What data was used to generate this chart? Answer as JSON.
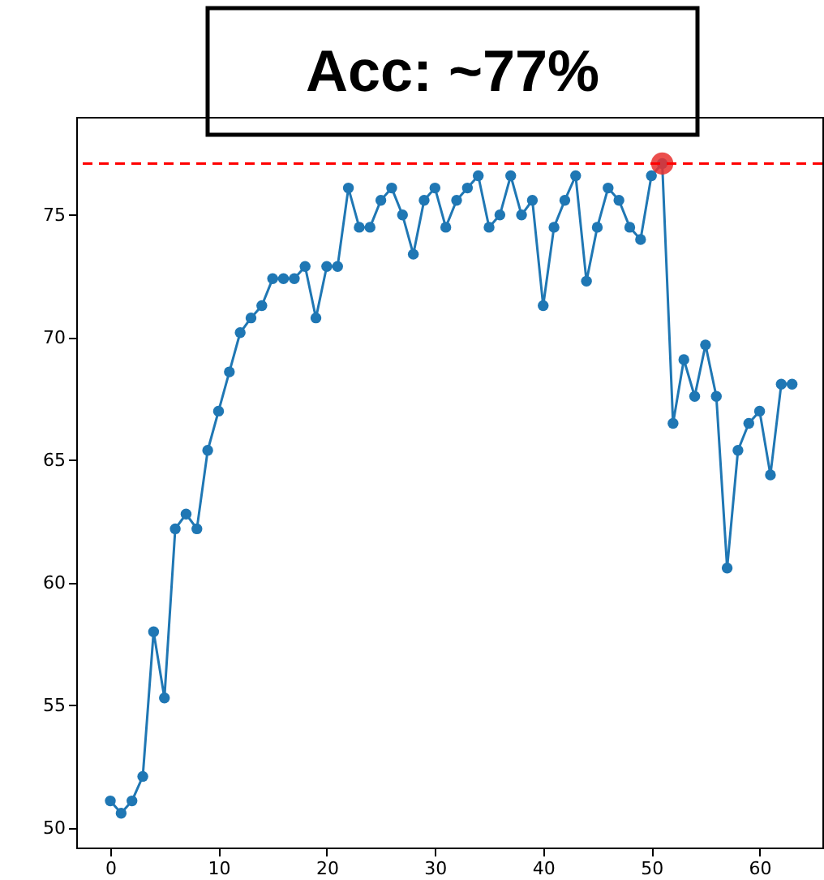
{
  "chart_data": {
    "type": "line",
    "title": "Acc: ~77%",
    "x": [
      0,
      1,
      2,
      3,
      4,
      5,
      6,
      7,
      8,
      9,
      10,
      11,
      12,
      13,
      14,
      15,
      16,
      17,
      18,
      19,
      20,
      21,
      22,
      23,
      24,
      25,
      26,
      27,
      28,
      29,
      30,
      31,
      32,
      33,
      34,
      35,
      36,
      37,
      38,
      39,
      40,
      41,
      42,
      43,
      44,
      45,
      46,
      47,
      48,
      49,
      50,
      51,
      52,
      53,
      54,
      55,
      56,
      57,
      58,
      59,
      60,
      61,
      62,
      63
    ],
    "series": [
      {
        "color": "#1f77b4",
        "marker": "circle",
        "line_style": "solid",
        "values": [
          51.1,
          50.6,
          51.1,
          52.1,
          58.0,
          55.3,
          62.2,
          62.8,
          62.2,
          65.4,
          67.0,
          68.6,
          70.2,
          70.8,
          71.3,
          72.4,
          72.4,
          72.4,
          72.9,
          70.8,
          72.9,
          72.9,
          76.1,
          74.5,
          74.5,
          75.6,
          76.1,
          75.0,
          73.4,
          75.6,
          76.1,
          74.5,
          75.6,
          76.1,
          76.6,
          74.5,
          75.0,
          76.6,
          75.0,
          75.6,
          71.3,
          74.5,
          75.6,
          76.6,
          72.3,
          74.5,
          76.1,
          75.6,
          74.5,
          74.0,
          76.6,
          77.1,
          66.5,
          69.1,
          67.6,
          69.7,
          67.6,
          60.6,
          65.4,
          66.5,
          67.0,
          64.4,
          68.1,
          68.1
        ]
      },
      {
        "type": "scatter",
        "color": "#e8312f",
        "x": [
          51
        ],
        "values": [
          77.1
        ]
      }
    ],
    "ref_lines": [
      {
        "axis": "y",
        "value": 77.1,
        "color": "#ff0000",
        "line_style": "dashed"
      }
    ],
    "xlim": [
      -3.15,
      65.8
    ],
    "ylim": [
      49.2,
      79.0
    ],
    "xticks": [
      0,
      10,
      20,
      30,
      40,
      50,
      60
    ],
    "yticks": [
      50,
      55,
      60,
      65,
      70,
      75
    ],
    "grid": false
  }
}
